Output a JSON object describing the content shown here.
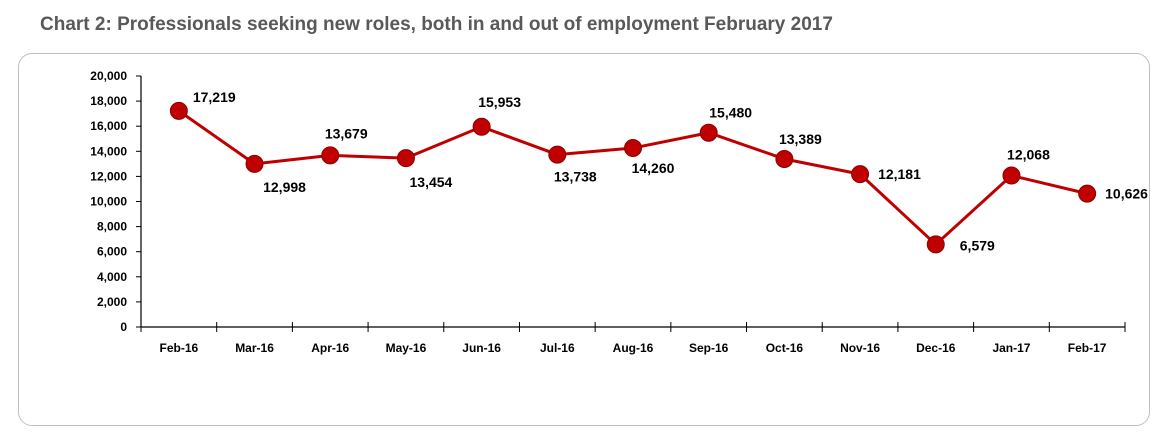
{
  "title": "Chart 2: Professionals seeking new roles, both in and out of employment February 2017",
  "chart_data": {
    "type": "line",
    "categories": [
      "Feb-16",
      "Mar-16",
      "Apr-16",
      "May-16",
      "Jun-16",
      "Jul-16",
      "Aug-16",
      "Sep-16",
      "Oct-16",
      "Nov-16",
      "Dec-16",
      "Jan-17",
      "Feb-17"
    ],
    "series": [
      {
        "values": [
          17219,
          12998,
          13679,
          13454,
          15953,
          13738,
          14260,
          15480,
          13389,
          12181,
          6579,
          12068,
          10626
        ]
      }
    ],
    "data_labels": [
      "17,219",
      "12,998",
      "13,679",
      "13,454",
      "15,953",
      "13,738",
      "14,260",
      "15,480",
      "13,389",
      "12,181",
      "6,579",
      "12,068",
      "10,626"
    ],
    "y_ticks": [
      "0",
      "2,000",
      "4,000",
      "6,000",
      "8,000",
      "10,000",
      "12,000",
      "14,000",
      "16,000",
      "18,000",
      "20,000"
    ],
    "ylim": [
      0,
      20000
    ],
    "grid": false,
    "legend": false,
    "line_color": "#c00000",
    "marker_color": "#c00000"
  }
}
